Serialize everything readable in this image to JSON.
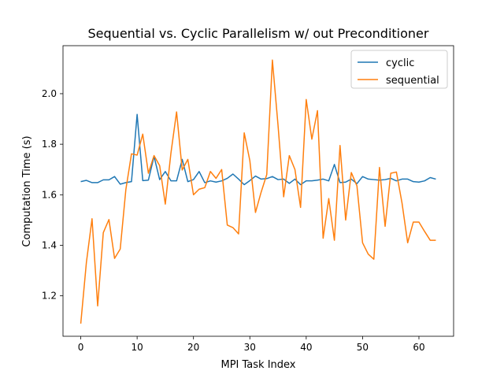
{
  "chart_data": {
    "type": "line",
    "title": "Sequential vs. Cyclic Parallelism w/ out Preconditioner",
    "xlabel": "MPI Task Index",
    "ylabel": "Computation Time (s)",
    "xlim": [
      -3.15,
      66.15
    ],
    "ylim": [
      1.04,
      2.19
    ],
    "xticks": [
      0,
      10,
      20,
      30,
      40,
      50,
      60
    ],
    "yticks": [
      1.2,
      1.4,
      1.6,
      1.8,
      2.0
    ],
    "legend_position": "top-right",
    "x": [
      0,
      1,
      2,
      3,
      4,
      5,
      6,
      7,
      8,
      9,
      10,
      11,
      12,
      13,
      14,
      15,
      16,
      17,
      18,
      19,
      20,
      21,
      22,
      23,
      24,
      25,
      26,
      27,
      28,
      29,
      30,
      31,
      32,
      33,
      34,
      35,
      36,
      37,
      38,
      39,
      40,
      41,
      42,
      43,
      44,
      45,
      46,
      47,
      48,
      49,
      50,
      51,
      52,
      53,
      54,
      55,
      56,
      57,
      58,
      59,
      60,
      61,
      62,
      63
    ],
    "series": [
      {
        "name": "cyclic",
        "color": "#1f77b4",
        "values": [
          1.652,
          1.657,
          1.648,
          1.648,
          1.659,
          1.659,
          1.672,
          1.642,
          1.648,
          1.652,
          1.918,
          1.656,
          1.658,
          1.752,
          1.66,
          1.692,
          1.655,
          1.655,
          1.74,
          1.652,
          1.66,
          1.692,
          1.648,
          1.655,
          1.65,
          1.655,
          1.665,
          1.682,
          1.662,
          1.64,
          1.656,
          1.674,
          1.662,
          1.664,
          1.672,
          1.66,
          1.662,
          1.645,
          1.662,
          1.64,
          1.655,
          1.655,
          1.658,
          1.662,
          1.655,
          1.72,
          1.648,
          1.65,
          1.662,
          1.644,
          1.672,
          1.662,
          1.66,
          1.658,
          1.66,
          1.665,
          1.655,
          1.662,
          1.662,
          1.652,
          1.65,
          1.655,
          1.668,
          1.662
        ]
      },
      {
        "name": "sequential",
        "color": "#ff7f0e",
        "values": [
          1.09,
          1.332,
          1.505,
          1.16,
          1.45,
          1.502,
          1.348,
          1.385,
          1.62,
          1.762,
          1.757,
          1.84,
          1.685,
          1.755,
          1.715,
          1.563,
          1.765,
          1.928,
          1.698,
          1.74,
          1.6,
          1.622,
          1.628,
          1.692,
          1.665,
          1.7,
          1.48,
          1.47,
          1.445,
          1.845,
          1.735,
          1.53,
          1.61,
          1.68,
          2.133,
          1.875,
          1.592,
          1.755,
          1.7,
          1.55,
          1.977,
          1.82,
          1.933,
          1.428,
          1.585,
          1.42,
          1.795,
          1.5,
          1.688,
          1.635,
          1.41,
          1.365,
          1.345,
          1.708,
          1.475,
          1.685,
          1.69,
          1.567,
          1.41,
          1.492,
          1.492,
          1.455,
          1.42,
          1.42
        ]
      }
    ]
  }
}
